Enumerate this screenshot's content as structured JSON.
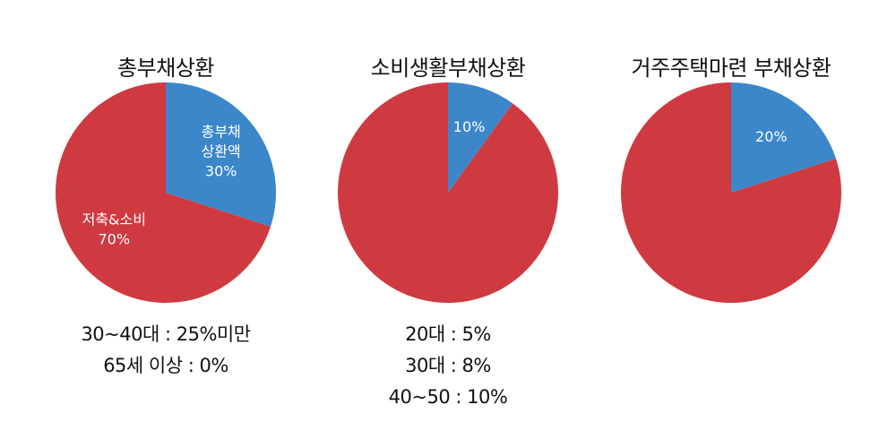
{
  "colors": {
    "red": "#cf3a40",
    "blue": "#3b87c9",
    "label": "#ffffff"
  },
  "chart_data": [
    {
      "type": "pie",
      "title": "총부채상환",
      "slices": [
        {
          "label": "총부채\n상환액",
          "value": 30,
          "value_text": "30%",
          "color": "#3b87c9"
        },
        {
          "label": "저축&소비",
          "value": 70,
          "value_text": "70%",
          "color": "#cf3a40"
        }
      ],
      "notes": [
        "30~40대 : 25%미만",
        "65세 이상 : 0%"
      ]
    },
    {
      "type": "pie",
      "title": "소비생활부채상환",
      "slices": [
        {
          "label": "",
          "value": 10,
          "value_text": "10%",
          "color": "#3b87c9"
        },
        {
          "label": "",
          "value": 90,
          "value_text": "",
          "color": "#cf3a40"
        }
      ],
      "notes": [
        "20대 : 5%",
        "30대 : 8%",
        "40~50 : 10%"
      ]
    },
    {
      "type": "pie",
      "title": "거주주택마련 부채상환",
      "slices": [
        {
          "label": "",
          "value": 20,
          "value_text": "20%",
          "color": "#3b87c9"
        },
        {
          "label": "",
          "value": 80,
          "value_text": "",
          "color": "#cf3a40"
        }
      ],
      "notes": []
    }
  ]
}
